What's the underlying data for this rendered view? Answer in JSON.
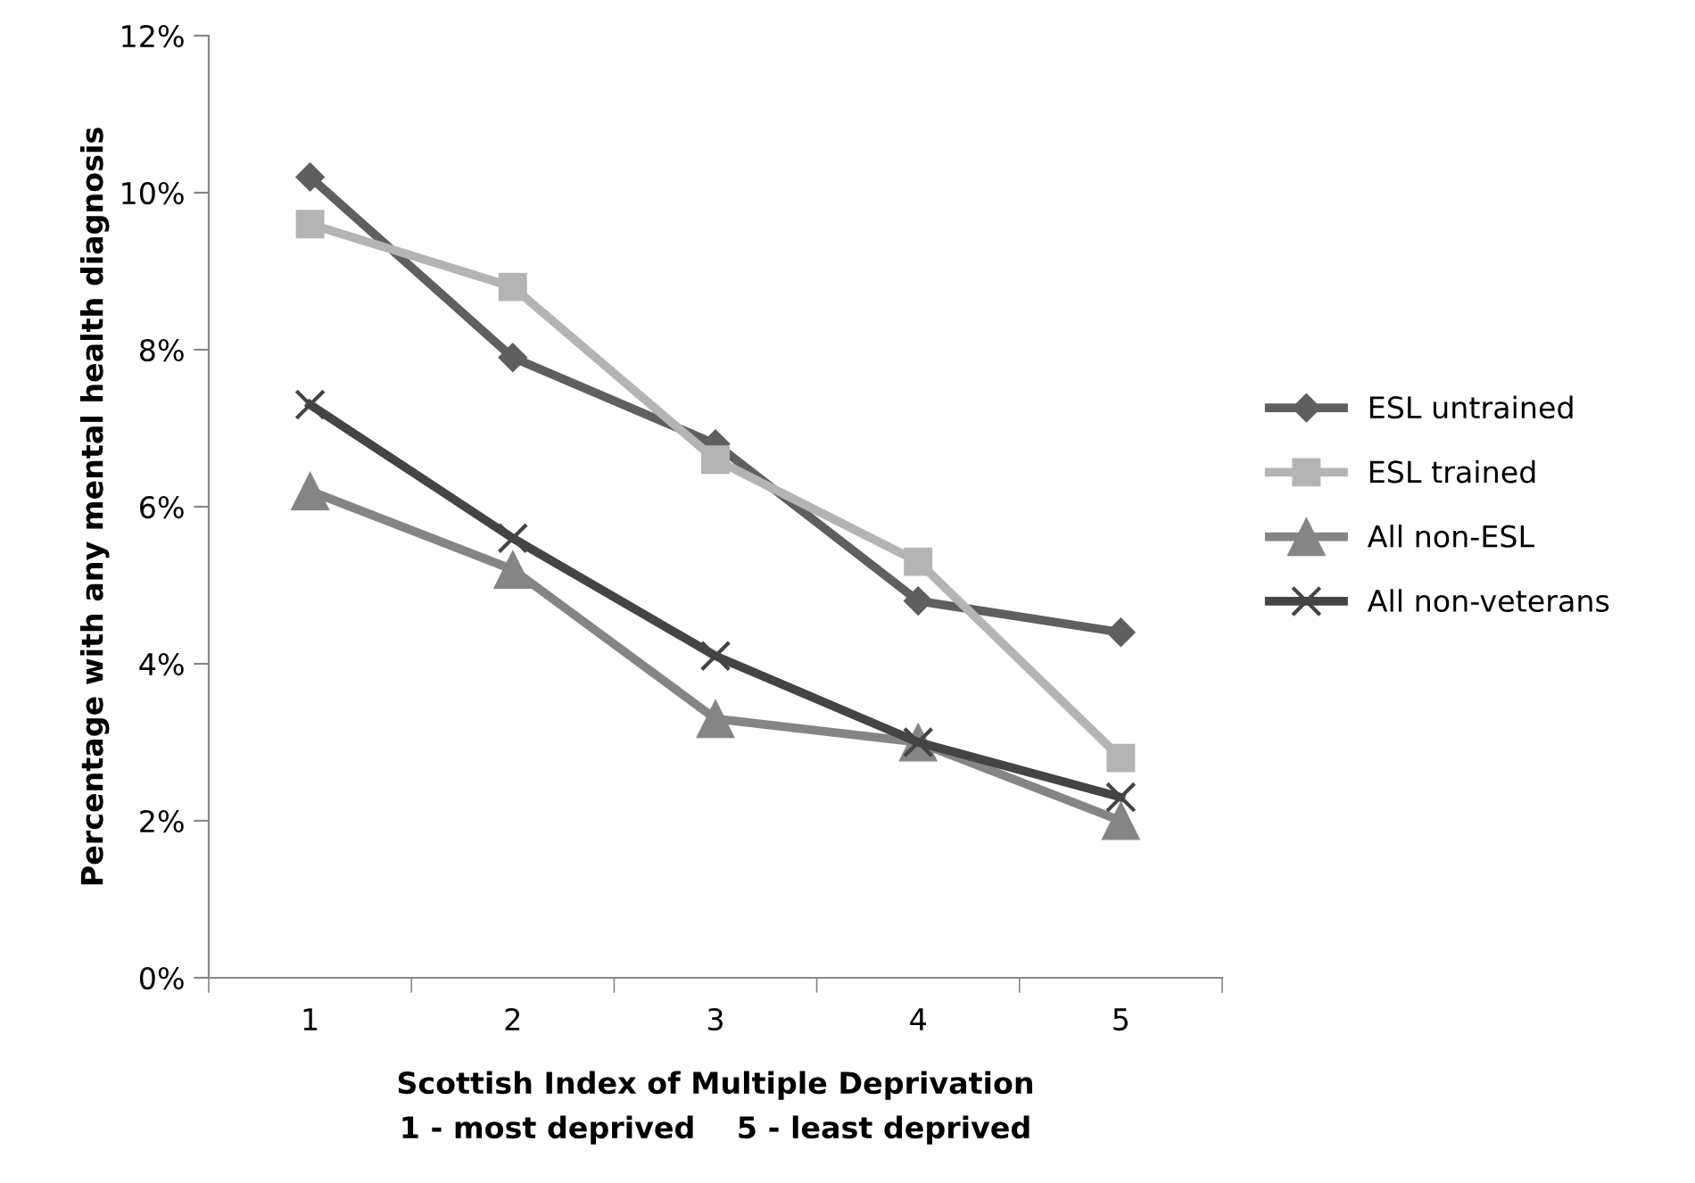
{
  "chart_data": {
    "type": "line",
    "xlabel": "Scottish Index of Multiple Deprivation\n1 - most deprived    5 - least deprived",
    "ylabel": "Percentage with any mental health diagnosis",
    "categories": [
      "1",
      "2",
      "3",
      "4",
      "5"
    ],
    "series": [
      {
        "name": "ESL untrained",
        "color": "#5f5f5f",
        "marker": "diamond",
        "values": [
          10.2,
          7.9,
          6.8,
          4.8,
          4.4
        ]
      },
      {
        "name": "ESL trained",
        "color": "#b4b4b4",
        "marker": "square",
        "values": [
          9.6,
          8.8,
          6.6,
          5.3,
          2.8
        ]
      },
      {
        "name": "All non-ESL",
        "color": "#858585",
        "marker": "triangle",
        "values": [
          6.2,
          5.2,
          3.3,
          3.0,
          2.0
        ]
      },
      {
        "name": "All non-veterans",
        "color": "#444444",
        "marker": "cross",
        "values": [
          7.3,
          5.6,
          4.1,
          3.0,
          2.3
        ]
      }
    ],
    "ylim": [
      0,
      12
    ],
    "yticks": [
      {
        "value": 0,
        "label": "0%"
      },
      {
        "value": 2,
        "label": "2%"
      },
      {
        "value": 4,
        "label": "4%"
      },
      {
        "value": 6,
        "label": "6%"
      },
      {
        "value": 8,
        "label": "8%"
      },
      {
        "value": 10,
        "label": "10%"
      },
      {
        "value": 12,
        "label": "12%"
      }
    ],
    "grid": false,
    "legend": "right"
  }
}
